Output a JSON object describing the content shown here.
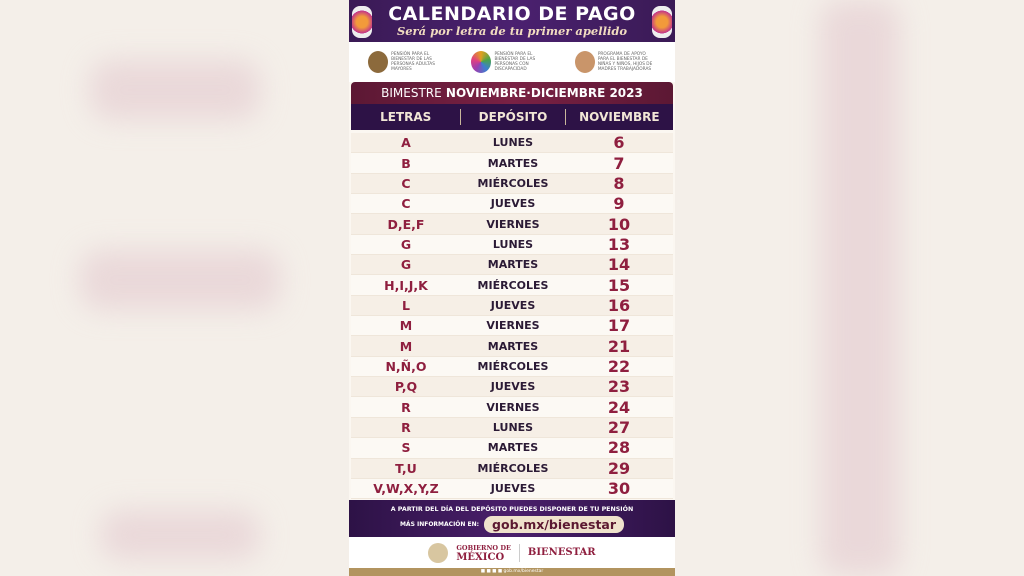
{
  "header": {
    "title": "CALENDARIO DE PAGO",
    "subtitle": "Será por letra de tu primer apellido"
  },
  "programs": [
    {
      "icon": "elderly-couple-icon",
      "text": "PENSIÓN PARA EL BIENESTAR DE LAS PERSONAS ADULTAS MAYORES",
      "color": "#8c6a3c"
    },
    {
      "icon": "disability-circle-icon",
      "text": "PENSIÓN PARA EL BIENESTAR DE LAS PERSONAS CON DISCAPACIDAD",
      "color": "#e0a020"
    },
    {
      "icon": "mother-children-icon",
      "text": "PROGRAMA DE APOYO PARA EL BIENESTAR DE NIÑAS Y NIÑOS, HIJOS DE MADRES TRABAJADORAS",
      "color": "#c9956a"
    }
  ],
  "period": {
    "prefix": "BIMESTRE",
    "months": "NOVIEMBRE·DICIEMBRE 2023"
  },
  "table": {
    "headers": [
      "LETRAS",
      "DEPÓSITO",
      "NOVIEMBRE"
    ],
    "rows": [
      [
        "A",
        "LUNES",
        "6"
      ],
      [
        "B",
        "MARTES",
        "7"
      ],
      [
        "C",
        "MIÉRCOLES",
        "8"
      ],
      [
        "C",
        "JUEVES",
        "9"
      ],
      [
        "D,E,F",
        "VIERNES",
        "10"
      ],
      [
        "G",
        "LUNES",
        "13"
      ],
      [
        "G",
        "MARTES",
        "14"
      ],
      [
        "H,I,J,K",
        "MIÉRCOLES",
        "15"
      ],
      [
        "L",
        "JUEVES",
        "16"
      ],
      [
        "M",
        "VIERNES",
        "17"
      ],
      [
        "M",
        "MARTES",
        "21"
      ],
      [
        "N,Ñ,O",
        "MIÉRCOLES",
        "22"
      ],
      [
        "P,Q",
        "JUEVES",
        "23"
      ],
      [
        "R",
        "VIERNES",
        "24"
      ],
      [
        "R",
        "LUNES",
        "27"
      ],
      [
        "S",
        "MARTES",
        "28"
      ],
      [
        "T,U",
        "MIÉRCOLES",
        "29"
      ],
      [
        "V,W,X,Y,Z",
        "JUEVES",
        "30"
      ]
    ]
  },
  "footer": {
    "notice": "A PARTIR DEL DÍA DEL DEPÓSITO PUEDES DISPONER DE TU PENSIÓN",
    "more_info": "MÁS INFORMACIÓN EN:",
    "url": "gob.mx/bienestar"
  },
  "branding": {
    "gov_line1": "GOBIERNO DE",
    "gov_line2": "MÉXICO",
    "agency": "BIENESTAR",
    "social": "gob.mx/bienestar"
  },
  "colors": {
    "purple": "#3a1a55",
    "maroon": "#8f1f3f",
    "gold": "#b2945f"
  }
}
